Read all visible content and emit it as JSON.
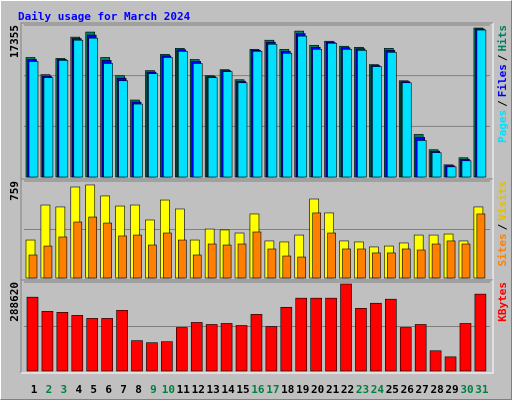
{
  "chart_data": {
    "type": "bar",
    "title": "Daily usage for March 2024",
    "categories": [
      "1",
      "2",
      "3",
      "4",
      "5",
      "6",
      "7",
      "8",
      "9",
      "10",
      "11",
      "12",
      "13",
      "14",
      "15",
      "16",
      "17",
      "18",
      "19",
      "20",
      "21",
      "22",
      "23",
      "24",
      "25",
      "26",
      "27",
      "28",
      "29",
      "30",
      "31"
    ],
    "category_colors": [
      "#000000",
      "#008040",
      "#008040",
      "#000000",
      "#000000",
      "#000000",
      "#000000",
      "#000000",
      "#008040",
      "#008040",
      "#000000",
      "#000000",
      "#000000",
      "#000000",
      "#000000",
      "#008040",
      "#008040",
      "#000000",
      "#000000",
      "#000000",
      "#000000",
      "#000000",
      "#008040",
      "#008040",
      "#000000",
      "#000000",
      "#000000",
      "#000000",
      "#000000",
      "#008040",
      "#008040"
    ],
    "legend_separator": "/",
    "panels": [
      {
        "ylim": [
          0,
          17355
        ],
        "yticks": [
          17355
        ],
        "series": [
          {
            "name": "Pages",
            "color": "#00e0ff",
            "values": [
              13190,
              11340,
              13310,
              15620,
              15850,
              12960,
              10990,
              8330,
              11800,
              13650,
              14350,
              12960,
              11340,
              12030,
              10760,
              14350,
              15160,
              14120,
              16080,
              14580,
              15270,
              14580,
              14460,
              12610,
              14230,
              10760,
              4170,
              2780,
              1160,
              1850,
              16780
            ]
          },
          {
            "name": "Files",
            "color": "#0000ff",
            "values": [
              13420,
              11520,
              13430,
              15800,
              16200,
              13310,
              11280,
              8560,
              11980,
              13830,
              14520,
              13190,
              11460,
              12150,
              10940,
              14470,
              15390,
              14350,
              16370,
              14810,
              15390,
              14760,
              14640,
              12730,
              14460,
              10880,
              4520,
              2950,
              1280,
              2030,
              16900
            ]
          },
          {
            "name": "Hits",
            "color": "#008060",
            "values": [
              13650,
              11690,
              13540,
              15970,
              16550,
              13650,
              11570,
              8790,
              12150,
              14000,
              14690,
              13420,
              11570,
              12260,
              11110,
              14580,
              15620,
              14580,
              16660,
              15040,
              15500,
              14930,
              14810,
              12840,
              14690,
              10990,
              4860,
              3120,
              1390,
              2200,
              17010
            ]
          }
        ]
      },
      {
        "ylim": [
          0,
          759
        ],
        "yticks": [
          759
        ],
        "series": [
          {
            "name": "Sites",
            "color": "#ff8000",
            "values": [
              180,
              250,
              321,
              438,
              477,
              430,
              329,
              336,
              258,
              352,
              297,
              180,
              266,
              258,
              266,
              360,
              227,
              172,
              164,
              509,
              352,
              227,
              227,
              196,
              196,
              227,
              219,
              266,
              290,
              266,
              501
            ]
          },
          {
            "name": "Visits",
            "color": "#ffff00",
            "values": [
              297,
              571,
              556,
              712,
              728,
              642,
              563,
              571,
              454,
              610,
              540,
              297,
              383,
              376,
              352,
              501,
              290,
              282,
              336,
              618,
              509,
              290,
              282,
              243,
              250,
              274,
              336,
              336,
              344,
              290,
              556
            ]
          }
        ]
      },
      {
        "ylim": [
          0,
          288620
        ],
        "yticks": [
          288620
        ],
        "series": [
          {
            "name": "KBytes",
            "color": "#ff0000",
            "values": [
              239440,
              193520,
              190240,
              180400,
              170560,
              170560,
              196800,
              98400,
              91840,
              95120,
              141040,
              157440,
              150880,
              154160,
              147600,
              183680,
              144320,
              206640,
              236160,
              236160,
              236160,
              282080,
              203360,
              219760,
              232880,
              141040,
              150880,
              65600,
              45920,
              154160,
              249280
            ]
          }
        ]
      }
    ]
  }
}
